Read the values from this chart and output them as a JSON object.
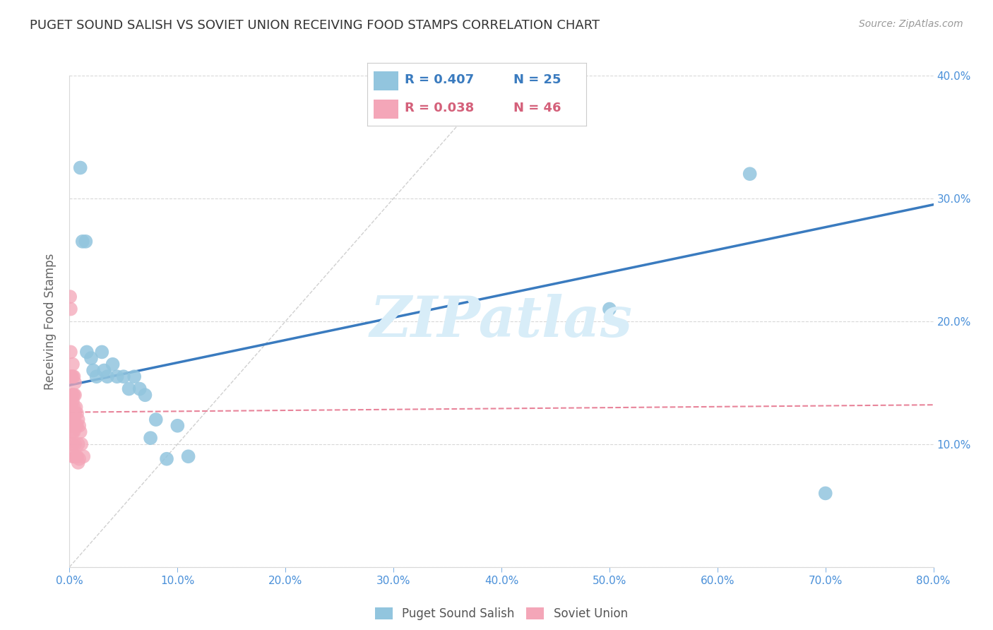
{
  "title": "PUGET SOUND SALISH VS SOVIET UNION RECEIVING FOOD STAMPS CORRELATION CHART",
  "source": "Source: ZipAtlas.com",
  "ylabel": "Receiving Food Stamps",
  "xlim": [
    0.0,
    0.8
  ],
  "ylim": [
    0.0,
    0.4
  ],
  "xticks": [
    0.0,
    0.1,
    0.2,
    0.3,
    0.4,
    0.5,
    0.6,
    0.7,
    0.8
  ],
  "yticks": [
    0.0,
    0.1,
    0.2,
    0.3,
    0.4
  ],
  "blue_color": "#92c5de",
  "pink_color": "#f4a6b8",
  "blue_line_color": "#3a7bbf",
  "pink_line_color": "#e8849a",
  "diag_line_color": "#d0d0d0",
  "grid_color": "#d8d8d8",
  "title_color": "#333333",
  "tick_color": "#4a90d9",
  "ylabel_color": "#666666",
  "watermark_color": "#d8edf8",
  "legend_R_blue": "R = 0.407",
  "legend_N_blue": "N = 25",
  "legend_R_pink": "R = 0.038",
  "legend_N_pink": "N = 46",
  "legend_label_blue": "Puget Sound Salish",
  "legend_label_pink": "Soviet Union",
  "blue_points_x": [
    0.01,
    0.012,
    0.015,
    0.016,
    0.02,
    0.022,
    0.025,
    0.03,
    0.032,
    0.035,
    0.04,
    0.044,
    0.05,
    0.055,
    0.06,
    0.065,
    0.07,
    0.075,
    0.08,
    0.09,
    0.1,
    0.11,
    0.5,
    0.63,
    0.7
  ],
  "blue_points_y": [
    0.325,
    0.265,
    0.265,
    0.175,
    0.17,
    0.16,
    0.155,
    0.175,
    0.16,
    0.155,
    0.165,
    0.155,
    0.155,
    0.145,
    0.155,
    0.145,
    0.14,
    0.105,
    0.12,
    0.088,
    0.115,
    0.09,
    0.21,
    0.32,
    0.06
  ],
  "pink_points_x": [
    0.0005,
    0.001,
    0.001,
    0.001,
    0.001,
    0.0015,
    0.002,
    0.002,
    0.002,
    0.002,
    0.002,
    0.002,
    0.002,
    0.003,
    0.003,
    0.003,
    0.003,
    0.003,
    0.003,
    0.003,
    0.003,
    0.003,
    0.004,
    0.004,
    0.004,
    0.004,
    0.004,
    0.004,
    0.005,
    0.005,
    0.005,
    0.005,
    0.006,
    0.006,
    0.006,
    0.007,
    0.007,
    0.007,
    0.008,
    0.008,
    0.008,
    0.009,
    0.009,
    0.01,
    0.011,
    0.013
  ],
  "pink_points_y": [
    0.22,
    0.21,
    0.175,
    0.155,
    0.14,
    0.13,
    0.155,
    0.14,
    0.13,
    0.12,
    0.115,
    0.11,
    0.1,
    0.165,
    0.155,
    0.14,
    0.135,
    0.125,
    0.115,
    0.11,
    0.1,
    0.09,
    0.155,
    0.14,
    0.13,
    0.12,
    0.11,
    0.09,
    0.15,
    0.14,
    0.125,
    0.1,
    0.13,
    0.115,
    0.09,
    0.125,
    0.115,
    0.09,
    0.12,
    0.1,
    0.085,
    0.115,
    0.088,
    0.11,
    0.1,
    0.09
  ],
  "blue_line_x": [
    0.0,
    0.8
  ],
  "blue_line_y": [
    0.148,
    0.295
  ],
  "pink_line_x": [
    0.0,
    0.8
  ],
  "pink_line_y": [
    0.126,
    0.132
  ],
  "diag_line_x": [
    0.0,
    0.4
  ],
  "diag_line_y": [
    0.0,
    0.4
  ]
}
